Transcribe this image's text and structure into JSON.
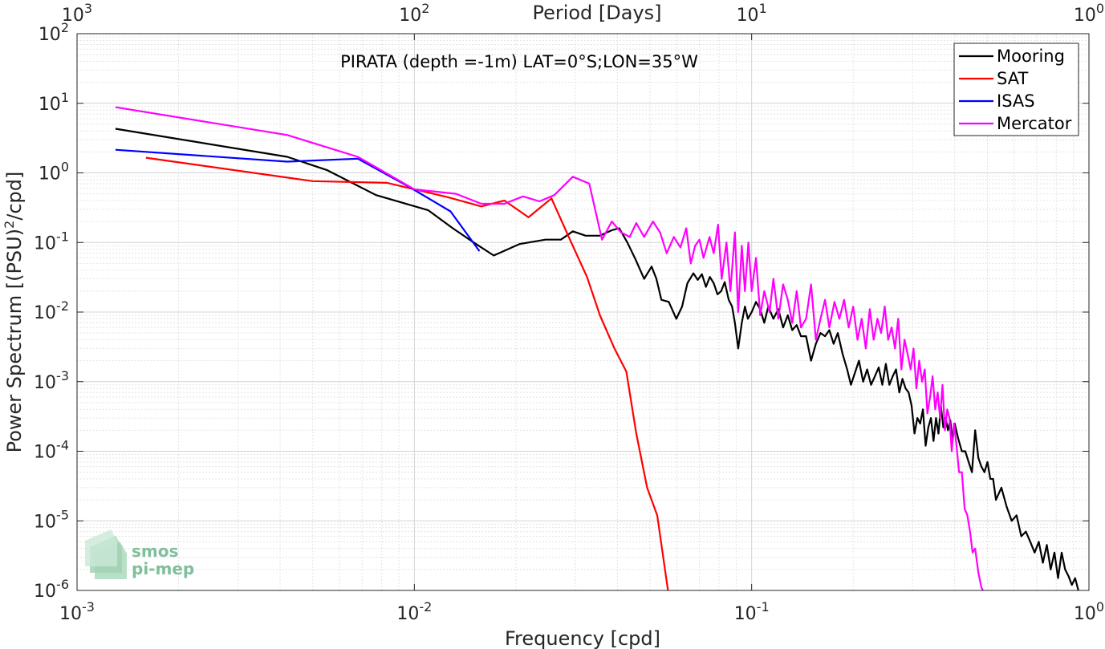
{
  "chart_data": {
    "type": "line",
    "title": "PIRATA (depth =-1m) LAT=0°S;LON=35°W",
    "xlabel": "Frequency [cpd]",
    "ylabel_main": "Power Spectrum [(PSU)",
    "ylabel_sup": "2",
    "ylabel_tail": "/cpd]",
    "top_xlabel": "Period [Days]",
    "x_scale": "log",
    "y_scale": "log",
    "xlim": [
      0.001,
      1
    ],
    "ylim": [
      1e-06,
      100
    ],
    "grid": true,
    "legend_position": "top-right",
    "x_ticks": [
      {
        "value": 0.001,
        "base": "10",
        "exp": "-3"
      },
      {
        "value": 0.01,
        "base": "10",
        "exp": "-2"
      },
      {
        "value": 0.1,
        "base": "10",
        "exp": "-1"
      },
      {
        "value": 1,
        "base": "10",
        "exp": "0"
      }
    ],
    "y_ticks": [
      {
        "value": 1e-06,
        "base": "10",
        "exp": "-6"
      },
      {
        "value": 1e-05,
        "base": "10",
        "exp": "-5"
      },
      {
        "value": 0.0001,
        "base": "10",
        "exp": "-4"
      },
      {
        "value": 0.001,
        "base": "10",
        "exp": "-3"
      },
      {
        "value": 0.01,
        "base": "10",
        "exp": "-2"
      },
      {
        "value": 0.1,
        "base": "10",
        "exp": "-1"
      },
      {
        "value": 1,
        "base": "10",
        "exp": "0"
      },
      {
        "value": 10,
        "base": "10",
        "exp": "1"
      },
      {
        "value": 100,
        "base": "10",
        "exp": "2"
      }
    ],
    "top_ticks": [
      {
        "value": 1000,
        "base": "10",
        "exp": "3"
      },
      {
        "value": 100,
        "base": "10",
        "exp": "2"
      },
      {
        "value": 10,
        "base": "10",
        "exp": "1"
      },
      {
        "value": 1,
        "base": "10",
        "exp": "0"
      }
    ],
    "series": [
      {
        "name": "Mooring",
        "color": "#000000",
        "points": [
          [
            0.0013,
            4.3
          ],
          [
            0.0042,
            1.7
          ],
          [
            0.0055,
            1.1
          ],
          [
            0.0077,
            0.48
          ],
          [
            0.011,
            0.29
          ],
          [
            0.013,
            0.16
          ],
          [
            0.015,
            0.1
          ],
          [
            0.0172,
            0.065
          ],
          [
            0.0205,
            0.095
          ],
          [
            0.0245,
            0.11
          ],
          [
            0.0272,
            0.11
          ],
          [
            0.0295,
            0.145
          ],
          [
            0.0322,
            0.125
          ],
          [
            0.0355,
            0.125
          ],
          [
            0.0385,
            0.15
          ],
          [
            0.0405,
            0.16
          ],
          [
            0.0428,
            0.1
          ],
          [
            0.0452,
            0.058
          ],
          [
            0.048,
            0.03
          ],
          [
            0.0505,
            0.045
          ],
          [
            0.0522,
            0.03
          ],
          [
            0.054,
            0.015
          ],
          [
            0.0568,
            0.014
          ],
          [
            0.0598,
            0.008
          ],
          [
            0.0622,
            0.012
          ],
          [
            0.0645,
            0.026
          ],
          [
            0.0672,
            0.036
          ],
          [
            0.0692,
            0.029
          ],
          [
            0.0712,
            0.035
          ],
          [
            0.0732,
            0.023
          ],
          [
            0.0752,
            0.032
          ],
          [
            0.0772,
            0.026
          ],
          [
            0.0792,
            0.018
          ],
          [
            0.0812,
            0.02
          ],
          [
            0.0832,
            0.027
          ],
          [
            0.0855,
            0.015
          ],
          [
            0.0875,
            0.012
          ],
          [
            0.0892,
            0.007
          ],
          [
            0.0912,
            0.003
          ],
          [
            0.0935,
            0.007
          ],
          [
            0.0955,
            0.012
          ],
          [
            0.0975,
            0.008
          ],
          [
            0.1,
            0.01
          ],
          [
            0.103,
            0.014
          ],
          [
            0.106,
            0.011
          ],
          [
            0.109,
            0.007
          ],
          [
            0.112,
            0.012
          ],
          [
            0.116,
            0.008
          ],
          [
            0.12,
            0.011
          ],
          [
            0.124,
            0.006
          ],
          [
            0.128,
            0.009
          ],
          [
            0.132,
            0.0055
          ],
          [
            0.136,
            0.0065
          ],
          [
            0.14,
            0.0045
          ],
          [
            0.145,
            0.0045
          ],
          [
            0.15,
            0.002
          ],
          [
            0.155,
            0.0035
          ],
          [
            0.16,
            0.005
          ],
          [
            0.165,
            0.0045
          ],
          [
            0.17,
            0.0055
          ],
          [
            0.175,
            0.0035
          ],
          [
            0.18,
            0.005
          ],
          [
            0.186,
            0.0025
          ],
          [
            0.192,
            0.0015
          ],
          [
            0.197,
            0.0009
          ],
          [
            0.202,
            0.0013
          ],
          [
            0.208,
            0.002
          ],
          [
            0.214,
            0.001
          ],
          [
            0.22,
            0.0015
          ],
          [
            0.226,
            0.0009
          ],
          [
            0.232,
            0.0012
          ],
          [
            0.238,
            0.0016
          ],
          [
            0.244,
            0.0009
          ],
          [
            0.25,
            0.0018
          ],
          [
            0.256,
            0.0009
          ],
          [
            0.262,
            0.0012
          ],
          [
            0.268,
            0.0015
          ],
          [
            0.274,
            0.0007
          ],
          [
            0.28,
            0.0011
          ],
          [
            0.286,
            0.0008
          ],
          [
            0.292,
            0.0007
          ],
          [
            0.298,
            0.00045
          ],
          [
            0.304,
            0.00018
          ],
          [
            0.31,
            0.0003
          ],
          [
            0.316,
            0.00025
          ],
          [
            0.322,
            0.0004
          ],
          [
            0.328,
            0.00012
          ],
          [
            0.334,
            0.00022
          ],
          [
            0.34,
            0.0003
          ],
          [
            0.346,
            0.00014
          ],
          [
            0.352,
            0.0003
          ],
          [
            0.358,
            0.00018
          ],
          [
            0.364,
            0.00045
          ],
          [
            0.37,
            0.00022
          ],
          [
            0.376,
            0.0003
          ],
          [
            0.382,
            0.0002
          ],
          [
            0.388,
            0.00028
          ],
          [
            0.394,
            0.00014
          ],
          [
            0.4,
            0.00025
          ],
          [
            0.41,
            0.00015
          ],
          [
            0.42,
            0.0001
          ],
          [
            0.43,
            0.0001
          ],
          [
            0.44,
            7e-05
          ],
          [
            0.45,
            5e-05
          ],
          [
            0.46,
            0.0002
          ],
          [
            0.47,
            8e-05
          ],
          [
            0.48,
            6e-05
          ],
          [
            0.49,
            5e-05
          ],
          [
            0.5,
            7e-05
          ],
          [
            0.51,
            4e-05
          ],
          [
            0.52,
            4e-05
          ],
          [
            0.53,
            2e-05
          ],
          [
            0.55,
            3e-05
          ],
          [
            0.57,
            1.6e-05
          ],
          [
            0.59,
            1e-05
          ],
          [
            0.61,
            1.2e-05
          ],
          [
            0.63,
            6e-06
          ],
          [
            0.65,
            7e-06
          ],
          [
            0.67,
            5e-06
          ],
          [
            0.69,
            3.5e-06
          ],
          [
            0.71,
            5e-06
          ],
          [
            0.73,
            2.5e-06
          ],
          [
            0.75,
            4.5e-06
          ],
          [
            0.77,
            2e-06
          ],
          [
            0.79,
            3.5e-06
          ],
          [
            0.81,
            1.5e-06
          ],
          [
            0.83,
            3.5e-06
          ],
          [
            0.85,
            2e-06
          ],
          [
            0.87,
            1.6e-06
          ],
          [
            0.89,
            1.2e-06
          ],
          [
            0.91,
            1.5e-06
          ],
          [
            0.93,
            1e-06
          ]
        ]
      },
      {
        "name": "SAT",
        "color": "#ff0000",
        "points": [
          [
            0.0016,
            1.65
          ],
          [
            0.005,
            0.76
          ],
          [
            0.0083,
            0.72
          ],
          [
            0.0125,
            0.45
          ],
          [
            0.0158,
            0.33
          ],
          [
            0.0185,
            0.4
          ],
          [
            0.0218,
            0.23
          ],
          [
            0.0255,
            0.43
          ],
          [
            0.0292,
            0.1
          ],
          [
            0.0325,
            0.032
          ],
          [
            0.0355,
            0.009
          ],
          [
            0.0392,
            0.003
          ],
          [
            0.0425,
            0.0014
          ],
          [
            0.0455,
            0.00018
          ],
          [
            0.049,
            3e-05
          ],
          [
            0.0525,
            1.2e-05
          ],
          [
            0.0565,
            1e-06
          ]
        ]
      },
      {
        "name": "ISAS",
        "color": "#0000ff",
        "points": [
          [
            0.0013,
            2.15
          ],
          [
            0.0042,
            1.45
          ],
          [
            0.0068,
            1.6
          ],
          [
            0.0097,
            0.62
          ],
          [
            0.0128,
            0.28
          ],
          [
            0.0156,
            0.075
          ]
        ]
      },
      {
        "name": "Mercator",
        "color": "#ff00ff",
        "points": [
          [
            0.0013,
            8.8
          ],
          [
            0.0042,
            3.5
          ],
          [
            0.0068,
            1.7
          ],
          [
            0.01,
            0.58
          ],
          [
            0.0133,
            0.5
          ],
          [
            0.0158,
            0.36
          ],
          [
            0.0185,
            0.36
          ],
          [
            0.021,
            0.46
          ],
          [
            0.0235,
            0.39
          ],
          [
            0.026,
            0.48
          ],
          [
            0.0295,
            0.88
          ],
          [
            0.033,
            0.7
          ],
          [
            0.036,
            0.11
          ],
          [
            0.0385,
            0.2
          ],
          [
            0.041,
            0.14
          ],
          [
            0.0435,
            0.12
          ],
          [
            0.0455,
            0.19
          ],
          [
            0.048,
            0.12
          ],
          [
            0.051,
            0.2
          ],
          [
            0.0535,
            0.14
          ],
          [
            0.056,
            0.07
          ],
          [
            0.0588,
            0.12
          ],
          [
            0.0615,
            0.085
          ],
          [
            0.064,
            0.16
          ],
          [
            0.066,
            0.05
          ],
          [
            0.068,
            0.09
          ],
          [
            0.07,
            0.11
          ],
          [
            0.072,
            0.06
          ],
          [
            0.075,
            0.12
          ],
          [
            0.0772,
            0.07
          ],
          [
            0.0795,
            0.18
          ],
          [
            0.0815,
            0.03
          ],
          [
            0.0842,
            0.1
          ],
          [
            0.0865,
            0.02
          ],
          [
            0.0892,
            0.14
          ],
          [
            0.0912,
            0.01
          ],
          [
            0.0935,
            0.09
          ],
          [
            0.0955,
            0.02
          ],
          [
            0.0978,
            0.1
          ],
          [
            0.1,
            0.02
          ],
          [
            0.103,
            0.06
          ],
          [
            0.106,
            0.009
          ],
          [
            0.109,
            0.02
          ],
          [
            0.113,
            0.01
          ],
          [
            0.116,
            0.03
          ],
          [
            0.12,
            0.008
          ],
          [
            0.124,
            0.025
          ],
          [
            0.128,
            0.015
          ],
          [
            0.132,
            0.007
          ],
          [
            0.136,
            0.02
          ],
          [
            0.14,
            0.006
          ],
          [
            0.145,
            0.008
          ],
          [
            0.15,
            0.025
          ],
          [
            0.155,
            0.004
          ],
          [
            0.16,
            0.008
          ],
          [
            0.165,
            0.015
          ],
          [
            0.17,
            0.006
          ],
          [
            0.176,
            0.014
          ],
          [
            0.182,
            0.008
          ],
          [
            0.188,
            0.015
          ],
          [
            0.194,
            0.006
          ],
          [
            0.2,
            0.012
          ],
          [
            0.206,
            0.004
          ],
          [
            0.212,
            0.008
          ],
          [
            0.218,
            0.003
          ],
          [
            0.224,
            0.011
          ],
          [
            0.23,
            0.004
          ],
          [
            0.236,
            0.008
          ],
          [
            0.242,
            0.005
          ],
          [
            0.248,
            0.012
          ],
          [
            0.254,
            0.004
          ],
          [
            0.26,
            0.006
          ],
          [
            0.266,
            0.003
          ],
          [
            0.272,
            0.008
          ],
          [
            0.278,
            0.0015
          ],
          [
            0.284,
            0.004
          ],
          [
            0.29,
            0.0025
          ],
          [
            0.296,
            0.0015
          ],
          [
            0.302,
            0.003
          ],
          [
            0.308,
            0.0008
          ],
          [
            0.314,
            0.002
          ],
          [
            0.32,
            0.001
          ],
          [
            0.326,
            0.0015
          ],
          [
            0.332,
            0.00035
          ],
          [
            0.338,
            0.0006
          ],
          [
            0.344,
            0.0012
          ],
          [
            0.35,
            0.0004
          ],
          [
            0.356,
            0.0007
          ],
          [
            0.362,
            0.0003
          ],
          [
            0.368,
            0.0009
          ],
          [
            0.374,
            0.0002
          ],
          [
            0.38,
            0.0004
          ],
          [
            0.386,
            0.0003
          ],
          [
            0.392,
            0.0001
          ],
          [
            0.398,
            0.00025
          ],
          [
            0.405,
            0.00012
          ],
          [
            0.412,
            5e-05
          ],
          [
            0.42,
            5e-05
          ],
          [
            0.428,
            1.5e-05
          ],
          [
            0.436,
            1.2e-05
          ],
          [
            0.444,
            7e-06
          ],
          [
            0.452,
            3.5e-06
          ],
          [
            0.46,
            4e-06
          ],
          [
            0.47,
            1.8e-06
          ],
          [
            0.48,
            1.1e-06
          ],
          [
            0.485,
            1e-06
          ]
        ]
      }
    ],
    "logo": {
      "line1": "smos",
      "line2": "pi-mep"
    }
  }
}
